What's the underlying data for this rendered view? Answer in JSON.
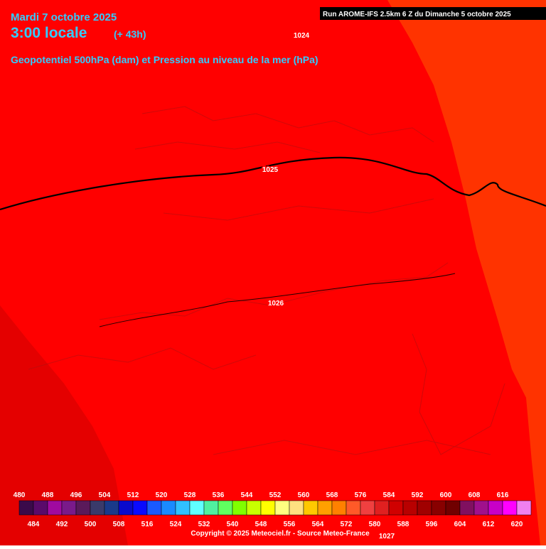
{
  "header": {
    "date": "Mardi 7 octobre 2025",
    "time": "3:00 locale",
    "lead": "(+ 43h)",
    "title": "Geopotentiel 500hPa (dam) et Pression au niveau de la mer (hPa)",
    "run": "Run AROME-IFS 2.5km 6 Z du Dimanche 5 octobre 2025"
  },
  "isobars": [
    {
      "label": "1024"
    },
    {
      "label": "1025"
    },
    {
      "label": "1026"
    },
    {
      "label": "1027"
    }
  ],
  "legend": {
    "items": [
      {
        "value": 480,
        "color": "#3a0a4a"
      },
      {
        "value": 484,
        "color": "#5a0a6a"
      },
      {
        "value": 488,
        "color": "#a00aa0"
      },
      {
        "value": 492,
        "color": "#7a1a8a"
      },
      {
        "value": 496,
        "color": "#5a1a5a"
      },
      {
        "value": 500,
        "color": "#3a3a6a"
      },
      {
        "value": 504,
        "color": "#1a3a8a"
      },
      {
        "value": 508,
        "color": "#0a0acc"
      },
      {
        "value": 512,
        "color": "#0a0aff"
      },
      {
        "value": 516,
        "color": "#1a5aff"
      },
      {
        "value": 520,
        "color": "#1a8aff"
      },
      {
        "value": 524,
        "color": "#30c0ff"
      },
      {
        "value": 528,
        "color": "#60ffff"
      },
      {
        "value": 532,
        "color": "#50f0a0"
      },
      {
        "value": 536,
        "color": "#60ff60"
      },
      {
        "value": 540,
        "color": "#80ff00"
      },
      {
        "value": 544,
        "color": "#c8ff00"
      },
      {
        "value": 548,
        "color": "#ffff00"
      },
      {
        "value": 552,
        "color": "#ffff80"
      },
      {
        "value": 556,
        "color": "#ffe080"
      },
      {
        "value": 560,
        "color": "#ffc800"
      },
      {
        "value": 564,
        "color": "#ffa000"
      },
      {
        "value": 568,
        "color": "#ff8000"
      },
      {
        "value": 572,
        "color": "#ff5a28"
      },
      {
        "value": 576,
        "color": "#f04040"
      },
      {
        "value": 580,
        "color": "#e02020"
      },
      {
        "value": 584,
        "color": "#d00000"
      },
      {
        "value": 588,
        "color": "#b80000"
      },
      {
        "value": 592,
        "color": "#a00000"
      },
      {
        "value": 596,
        "color": "#880000"
      },
      {
        "value": 600,
        "color": "#700000"
      },
      {
        "value": 604,
        "color": "#801060"
      },
      {
        "value": 608,
        "color": "#a0108c"
      },
      {
        "value": 612,
        "color": "#c800c8"
      },
      {
        "value": 616,
        "color": "#ff00ff"
      },
      {
        "value": 620,
        "color": "#f080f0"
      }
    ]
  },
  "footer": {
    "copyright": "Copyright © 2025 Meteociel.fr - Source Meteo-France"
  }
}
